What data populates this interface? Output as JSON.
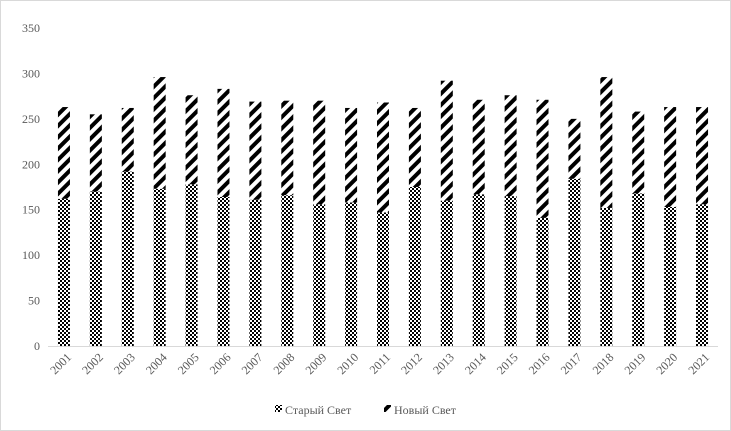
{
  "chart_data": {
    "type": "bar",
    "stacked": true,
    "title": "",
    "xlabel": "",
    "ylabel": "",
    "ylim": [
      0,
      350
    ],
    "yticks": [
      0,
      50,
      100,
      150,
      200,
      250,
      300,
      350
    ],
    "grid": false,
    "legend_position": "bottom",
    "categories": [
      "2001",
      "2002",
      "2003",
      "2004",
      "2005",
      "2006",
      "2007",
      "2008",
      "2009",
      "2010",
      "2011",
      "2012",
      "2013",
      "2014",
      "2015",
      "2016",
      "2017",
      "2018",
      "2019",
      "2020",
      "2021"
    ],
    "series": [
      {
        "name": "Старый Свет",
        "pattern": "checker",
        "values": [
          162,
          170,
          192,
          173,
          178,
          164,
          161,
          166,
          156,
          158,
          147,
          175,
          160,
          167,
          165,
          141,
          184,
          152,
          168,
          153,
          156
        ]
      },
      {
        "name": "Новый Свет",
        "pattern": "diagonal-stripes",
        "values": [
          101,
          85,
          70,
          123,
          98,
          119,
          108,
          104,
          114,
          104,
          121,
          87,
          132,
          104,
          111,
          130,
          66,
          144,
          90,
          110,
          107
        ]
      }
    ],
    "colors": {
      "axis": "#d9d9d9",
      "text": "#595959",
      "ink": "#000000"
    }
  }
}
